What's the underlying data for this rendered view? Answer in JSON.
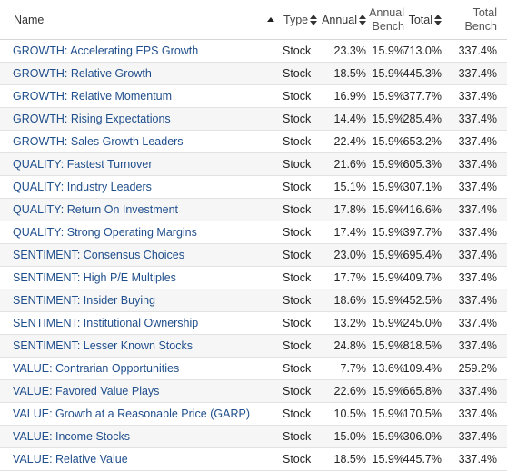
{
  "header": {
    "name": "Name",
    "type": "Type",
    "annual": "Annual",
    "annual_bench_1": "Annual",
    "annual_bench_2": "Bench",
    "total": "Total",
    "total_bench_1": "Total",
    "total_bench_2": "Bench"
  },
  "rows": [
    {
      "name": "GROWTH: Accelerating EPS Growth",
      "type": "Stock",
      "annual": "23.3%",
      "annual_bench": "15.9%",
      "total": "713.0%",
      "total_bench": "337.4%"
    },
    {
      "name": "GROWTH: Relative Growth",
      "type": "Stock",
      "annual": "18.5%",
      "annual_bench": "15.9%",
      "total": "445.3%",
      "total_bench": "337.4%"
    },
    {
      "name": "GROWTH: Relative Momentum",
      "type": "Stock",
      "annual": "16.9%",
      "annual_bench": "15.9%",
      "total": "377.7%",
      "total_bench": "337.4%"
    },
    {
      "name": "GROWTH: Rising Expectations",
      "type": "Stock",
      "annual": "14.4%",
      "annual_bench": "15.9%",
      "total": "285.4%",
      "total_bench": "337.4%"
    },
    {
      "name": "GROWTH: Sales Growth Leaders",
      "type": "Stock",
      "annual": "22.4%",
      "annual_bench": "15.9%",
      "total": "653.2%",
      "total_bench": "337.4%"
    },
    {
      "name": "QUALITY: Fastest Turnover",
      "type": "Stock",
      "annual": "21.6%",
      "annual_bench": "15.9%",
      "total": "605.3%",
      "total_bench": "337.4%"
    },
    {
      "name": "QUALITY: Industry Leaders",
      "type": "Stock",
      "annual": "15.1%",
      "annual_bench": "15.9%",
      "total": "307.1%",
      "total_bench": "337.4%"
    },
    {
      "name": "QUALITY: Return On Investment",
      "type": "Stock",
      "annual": "17.8%",
      "annual_bench": "15.9%",
      "total": "416.6%",
      "total_bench": "337.4%"
    },
    {
      "name": "QUALITY: Strong Operating Margins",
      "type": "Stock",
      "annual": "17.4%",
      "annual_bench": "15.9%",
      "total": "397.7%",
      "total_bench": "337.4%"
    },
    {
      "name": "SENTIMENT: Consensus Choices",
      "type": "Stock",
      "annual": "23.0%",
      "annual_bench": "15.9%",
      "total": "695.4%",
      "total_bench": "337.4%"
    },
    {
      "name": "SENTIMENT: High P/E Multiples",
      "type": "Stock",
      "annual": "17.7%",
      "annual_bench": "15.9%",
      "total": "409.7%",
      "total_bench": "337.4%"
    },
    {
      "name": "SENTIMENT: Insider Buying",
      "type": "Stock",
      "annual": "18.6%",
      "annual_bench": "15.9%",
      "total": "452.5%",
      "total_bench": "337.4%"
    },
    {
      "name": "SENTIMENT: Institutional Ownership",
      "type": "Stock",
      "annual": "13.2%",
      "annual_bench": "15.9%",
      "total": "245.0%",
      "total_bench": "337.4%"
    },
    {
      "name": "SENTIMENT: Lesser Known Stocks",
      "type": "Stock",
      "annual": "24.8%",
      "annual_bench": "15.9%",
      "total": "818.5%",
      "total_bench": "337.4%"
    },
    {
      "name": "VALUE: Contrarian Opportunities",
      "type": "Stock",
      "annual": "7.7%",
      "annual_bench": "13.6%",
      "total": "109.4%",
      "total_bench": "259.2%"
    },
    {
      "name": "VALUE: Favored Value Plays",
      "type": "Stock",
      "annual": "22.6%",
      "annual_bench": "15.9%",
      "total": "665.8%",
      "total_bench": "337.4%"
    },
    {
      "name": "VALUE: Growth at a Reasonable Price (GARP)",
      "type": "Stock",
      "annual": "10.5%",
      "annual_bench": "15.9%",
      "total": "170.5%",
      "total_bench": "337.4%"
    },
    {
      "name": "VALUE: Income Stocks",
      "type": "Stock",
      "annual": "15.0%",
      "annual_bench": "15.9%",
      "total": "306.0%",
      "total_bench": "337.4%"
    },
    {
      "name": "VALUE: Relative Value",
      "type": "Stock",
      "annual": "18.5%",
      "annual_bench": "15.9%",
      "total": "445.7%",
      "total_bench": "337.4%"
    }
  ],
  "colors": {
    "link": "#1f4e8c",
    "row_alt": "#f6f6f6",
    "border": "#e2e2e2"
  }
}
